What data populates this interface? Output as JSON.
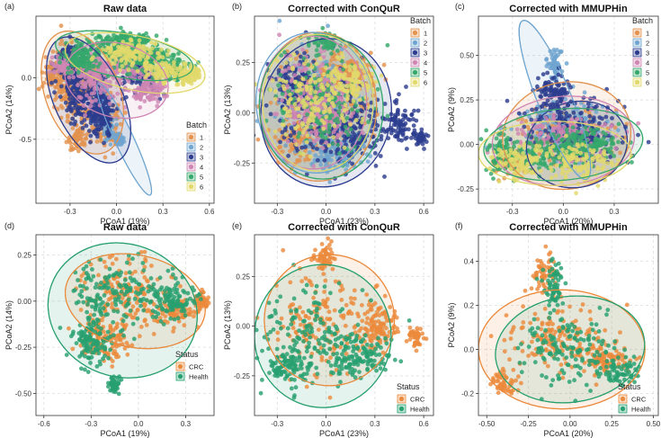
{
  "colors": {
    "batch": [
      "#E3934E",
      "#6FA5CF",
      "#2C3D8F",
      "#CF86B3",
      "#36A86B",
      "#E2D96B"
    ],
    "status": [
      "#EB8A3C",
      "#27A070"
    ],
    "grid": "#E4E4E4",
    "axis": "#333333"
  },
  "chart_data": [
    {
      "type": "scatter",
      "panel_label": "(a)",
      "title": "Raw data",
      "xlabel": "PCoA1 (19%)",
      "ylabel": "PCoA2 (14%)",
      "xlim": [
        -0.52,
        0.63
      ],
      "ylim": [
        -1.02,
        0.5
      ],
      "xticks": [
        -0.3,
        0.0,
        0.3,
        0.6
      ],
      "xtick_labels": [
        "-0.3",
        "0.0",
        "0.3",
        "0.6"
      ],
      "yticks": [
        -0.5,
        0.0
      ],
      "ytick_labels": [
        "-0.5",
        "0.0"
      ],
      "grid": true,
      "legend_title": "Batch",
      "legend_position": "bottom-right",
      "legend": [
        "1",
        "2",
        "3",
        "4",
        "5",
        "6"
      ],
      "series": [
        {
          "name": "1",
          "values": [
            [
              -0.33,
              0.0,
              0.1,
              0.28
            ],
            [
              -0.2,
              -0.12,
              0.13,
              0.25
            ],
            [
              -0.07,
              -0.35,
              0.08,
              0.2
            ],
            [
              -0.25,
              -0.48,
              0.06,
              0.1
            ],
            [
              -0.42,
              0.02,
              0.05,
              0.12
            ]
          ],
          "ellipses": [
            [
              -0.22,
              -0.12,
              0.24,
              0.52,
              20
            ]
          ]
        },
        {
          "name": "2",
          "values": [
            [
              -0.05,
              -0.42,
              0.04,
              0.1
            ],
            [
              0.02,
              -0.5,
              0.03,
              0.05
            ],
            [
              -0.1,
              -0.2,
              0.06,
              0.15
            ]
          ],
          "ellipses": [
            [
              0.05,
              -0.5,
              0.06,
              0.5,
              25
            ]
          ]
        },
        {
          "name": "3",
          "values": [
            [
              -0.27,
              -0.05,
              0.1,
              0.28
            ],
            [
              -0.15,
              -0.2,
              0.1,
              0.25
            ],
            [
              -0.32,
              0.12,
              0.08,
              0.1
            ],
            [
              -0.08,
              -0.32,
              0.07,
              0.18
            ],
            [
              0.15,
              0.05,
              0.12,
              0.2
            ]
          ],
          "ellipses": [
            [
              -0.18,
              -0.18,
              0.22,
              0.55,
              25
            ]
          ]
        },
        {
          "name": "4",
          "values": [
            [
              -0.15,
              0.0,
              0.12,
              0.2
            ],
            [
              0.05,
              0.1,
              0.18,
              0.12
            ],
            [
              0.2,
              -0.1,
              0.12,
              0.12
            ],
            [
              -0.35,
              0.1,
              0.06,
              0.1
            ]
          ],
          "ellipses": [
            [
              0.0,
              -0.02,
              0.34,
              0.3,
              -15
            ]
          ]
        },
        {
          "name": "5",
          "values": [
            [
              0.0,
              0.25,
              0.25,
              0.12
            ],
            [
              0.2,
              0.15,
              0.2,
              0.1
            ],
            [
              0.38,
              0.05,
              0.12,
              0.08
            ],
            [
              -0.22,
              0.15,
              0.12,
              0.12
            ],
            [
              0.1,
              0.3,
              0.15,
              0.06
            ]
          ],
          "ellipses": [
            [
              0.05,
              0.18,
              0.45,
              0.18,
              -10
            ]
          ]
        },
        {
          "name": "6",
          "values": [
            [
              0.3,
              0.05,
              0.15,
              0.08
            ],
            [
              0.1,
              0.2,
              0.2,
              0.1
            ],
            [
              0.45,
              0.0,
              0.06,
              0.06
            ],
            [
              0.5,
              0.05,
              0.04,
              0.05
            ]
          ],
          "ellipses": [
            [
              0.12,
              0.12,
              0.46,
              0.22,
              -12
            ]
          ]
        }
      ]
    },
    {
      "type": "scatter",
      "panel_label": "(b)",
      "title": "Corrected with ConQuR",
      "xlabel": "PCoA1 (23%)",
      "ylabel": "PCoA2 (13%)",
      "xlim": [
        -0.44,
        0.66
      ],
      "ylim": [
        -0.45,
        0.48
      ],
      "xticks": [
        -0.3,
        0.0,
        0.3,
        0.6
      ],
      "xtick_labels": [
        "-0.3",
        "0.0",
        "0.3",
        "0.6"
      ],
      "yticks": [
        -0.25,
        0.0,
        0.25
      ],
      "ytick_labels": [
        "-0.25",
        "0.00",
        "0.25"
      ],
      "grid": true,
      "legend_title": "Batch",
      "legend_position": "top-right",
      "legend": [
        "1",
        "2",
        "3",
        "4",
        "5",
        "6"
      ],
      "series": [
        {
          "name": "1",
          "values": [
            [
              -0.05,
              0.02,
              0.3,
              0.25
            ],
            [
              0.1,
              0.2,
              0.2,
              0.1
            ],
            [
              -0.15,
              -0.15,
              0.15,
              0.1
            ]
          ],
          "ellipses": [
            [
              -0.05,
              0.03,
              0.36,
              0.37,
              0
            ]
          ]
        },
        {
          "name": "2",
          "values": [
            [
              -0.08,
              0.05,
              0.28,
              0.25
            ],
            [
              0.05,
              -0.2,
              0.2,
              0.08
            ]
          ],
          "ellipses": [
            [
              -0.07,
              0.05,
              0.36,
              0.35,
              5
            ]
          ]
        },
        {
          "name": "3",
          "values": [
            [
              -0.05,
              0.02,
              0.32,
              0.26
            ],
            [
              0.15,
              -0.1,
              0.2,
              0.15
            ],
            [
              -0.2,
              0.15,
              0.12,
              0.12
            ],
            [
              0.45,
              -0.05,
              0.1,
              0.1
            ],
            [
              0.58,
              -0.12,
              0.04,
              0.04
            ]
          ],
          "ellipses": [
            [
              0.0,
              0.0,
              0.4,
              0.37,
              -10
            ]
          ]
        },
        {
          "name": "4",
          "values": [
            [
              -0.1,
              0.1,
              0.22,
              0.2
            ],
            [
              0.0,
              0.0,
              0.2,
              0.15
            ]
          ],
          "ellipses": [
            [
              -0.08,
              0.05,
              0.33,
              0.33,
              0
            ]
          ]
        },
        {
          "name": "5",
          "values": [
            [
              -0.02,
              0.05,
              0.3,
              0.25
            ],
            [
              0.0,
              0.35,
              0.1,
              0.05
            ]
          ],
          "ellipses": [
            [
              -0.03,
              0.03,
              0.38,
              0.36,
              5
            ]
          ]
        },
        {
          "name": "6",
          "values": [
            [
              -0.1,
              0.05,
              0.25,
              0.22
            ],
            [
              0.15,
              0.15,
              0.15,
              0.1
            ]
          ],
          "ellipses": [
            [
              -0.05,
              0.05,
              0.34,
              0.34,
              0
            ]
          ]
        }
      ]
    },
    {
      "type": "scatter",
      "panel_label": "(c)",
      "title": "Corrected with MMUPHin",
      "xlabel": "PCoA1 (20%)",
      "ylabel": "PCoA2 (9%)",
      "xlim": [
        -0.5,
        0.56
      ],
      "ylim": [
        -0.33,
        0.72
      ],
      "xticks": [
        -0.3,
        0.0,
        0.3
      ],
      "xtick_labels": [
        "-0.3",
        "0.0",
        "0.3"
      ],
      "yticks": [
        -0.25,
        0.0,
        0.25,
        0.5
      ],
      "ytick_labels": [
        "-0.25",
        "0.00",
        "0.25",
        "0.50"
      ],
      "grid": true,
      "legend_title": "Batch",
      "legend_position": "top-right",
      "legend": [
        "1",
        "2",
        "3",
        "4",
        "5",
        "6"
      ],
      "series": [
        {
          "name": "1",
          "values": [
            [
              0.0,
              0.05,
              0.3,
              0.15
            ],
            [
              -0.3,
              -0.1,
              0.1,
              0.08
            ]
          ],
          "ellipses": [
            [
              0.02,
              0.05,
              0.38,
              0.3,
              10
            ]
          ]
        },
        {
          "name": "2",
          "values": [
            [
              0.0,
              0.1,
              0.3,
              0.15
            ],
            [
              -0.05,
              0.45,
              0.05,
              0.1
            ]
          ],
          "ellipses": [
            [
              -0.05,
              0.25,
              0.1,
              0.48,
              22
            ]
          ]
        },
        {
          "name": "3",
          "values": [
            [
              0.05,
              0.1,
              0.28,
              0.17
            ],
            [
              -0.05,
              0.3,
              0.1,
              0.1
            ],
            [
              0.1,
              0.0,
              0.2,
              0.1
            ]
          ],
          "ellipses": [
            [
              0.08,
              0.0,
              0.3,
              0.24,
              15
            ]
          ]
        },
        {
          "name": "4",
          "values": [
            [
              0.0,
              0.05,
              0.28,
              0.14
            ]
          ],
          "ellipses": [
            [
              0.0,
              0.02,
              0.42,
              0.25,
              5
            ]
          ]
        },
        {
          "name": "5",
          "values": [
            [
              -0.35,
              -0.05,
              0.1,
              0.1
            ],
            [
              -0.1,
              -0.05,
              0.25,
              0.1
            ],
            [
              0.15,
              0.0,
              0.2,
              0.1
            ]
          ],
          "ellipses": [
            [
              0.0,
              0.0,
              0.47,
              0.2,
              5
            ]
          ]
        },
        {
          "name": "6",
          "values": [
            [
              -0.25,
              -0.1,
              0.15,
              0.1
            ],
            [
              0.1,
              -0.1,
              0.2,
              0.1
            ]
          ],
          "ellipses": [
            [
              -0.05,
              -0.05,
              0.45,
              0.18,
              0
            ]
          ]
        }
      ]
    },
    {
      "type": "scatter",
      "panel_label": "(d)",
      "title": "Raw data",
      "xlabel": "PCoA1 (19%)",
      "ylabel": "PCoA2 (14%)",
      "xlim": [
        -0.65,
        0.48
      ],
      "ylim": [
        -0.62,
        0.36
      ],
      "xticks": [
        -0.6,
        -0.3,
        0.0,
        0.3
      ],
      "xtick_labels": [
        "-0.6",
        "-0.3",
        "0.0",
        "0.3"
      ],
      "yticks": [
        -0.5,
        -0.25,
        0.0,
        0.25
      ],
      "ytick_labels": [
        "-0.50",
        "-0.25",
        "0.00",
        "0.25"
      ],
      "grid": true,
      "legend_title": "Status",
      "legend_position": "bottom-right",
      "legend": [
        "CRC",
        "Health"
      ],
      "series": [
        {
          "name": "CRC",
          "values": [
            [
              -0.1,
              0.05,
              0.3,
              0.18
            ],
            [
              0.25,
              -0.05,
              0.15,
              0.08
            ],
            [
              -0.2,
              -0.2,
              0.15,
              0.12
            ],
            [
              0.4,
              0.0,
              0.05,
              0.05
            ]
          ],
          "ellipses": [
            [
              -0.02,
              0.0,
              0.45,
              0.25,
              -12
            ]
          ]
        },
        {
          "name": "Health",
          "values": [
            [
              -0.15,
              0.05,
              0.3,
              0.18
            ],
            [
              -0.3,
              -0.2,
              0.12,
              0.15
            ],
            [
              -0.15,
              -0.45,
              0.04,
              0.05
            ],
            [
              0.2,
              0.0,
              0.15,
              0.1
            ]
          ],
          "ellipses": [
            [
              -0.1,
              -0.05,
              0.48,
              0.36,
              -20
            ]
          ]
        }
      ]
    },
    {
      "type": "scatter",
      "panel_label": "(e)",
      "title": "Corrected with ConQuR",
      "xlabel": "PCoA1 (23%)",
      "ylabel": "PCoA2 (13%)",
      "xlim": [
        -0.44,
        0.66
      ],
      "ylim": [
        -0.45,
        0.46
      ],
      "xticks": [
        -0.3,
        0.0,
        0.3,
        0.6
      ],
      "xtick_labels": [
        "-0.3",
        "0.0",
        "0.3",
        "0.6"
      ],
      "yticks": [
        -0.25,
        0.0,
        0.25
      ],
      "ytick_labels": [
        "-0.25",
        "0.00",
        "0.25"
      ],
      "grid": true,
      "legend_title": "Status",
      "legend_position": "bottom-right",
      "legend": [
        "CRC",
        "Health"
      ],
      "series": [
        {
          "name": "CRC",
          "values": [
            [
              -0.05,
              0.0,
              0.3,
              0.25
            ],
            [
              0.0,
              0.35,
              0.06,
              0.08
            ],
            [
              0.3,
              0.0,
              0.15,
              0.12
            ],
            [
              0.55,
              -0.05,
              0.05,
              0.05
            ]
          ],
          "ellipses": [
            [
              0.02,
              0.03,
              0.4,
              0.33,
              0
            ]
          ]
        },
        {
          "name": "Health",
          "values": [
            [
              -0.1,
              -0.05,
              0.3,
              0.25
            ],
            [
              -0.25,
              -0.2,
              0.12,
              0.1
            ],
            [
              0.2,
              -0.15,
              0.2,
              0.1
            ]
          ],
          "ellipses": [
            [
              -0.02,
              -0.05,
              0.42,
              0.36,
              0
            ]
          ]
        }
      ]
    },
    {
      "type": "scatter",
      "panel_label": "(f)",
      "title": "Corrected with MMUPHin",
      "xlabel": "PCoA1 (20%)",
      "ylabel": "PCoA2 (9%)",
      "xlim": [
        -0.55,
        0.53
      ],
      "ylim": [
        -0.3,
        0.52
      ],
      "xticks": [
        -0.5,
        -0.25,
        0.0,
        0.25,
        0.5
      ],
      "xtick_labels": [
        "-0.50",
        "-0.25",
        "0.00",
        "0.25",
        "0.50"
      ],
      "yticks": [
        -0.2,
        0.0,
        0.2,
        0.4
      ],
      "ytick_labels": [
        "-0.2",
        "0.0",
        "0.2",
        "0.4"
      ],
      "grid": true,
      "legend_title": "Status",
      "legend_position": "bottom-right",
      "legend": [
        "CRC",
        "Health"
      ],
      "series": [
        {
          "name": "CRC",
          "values": [
            [
              -0.1,
              0.05,
              0.3,
              0.15
            ],
            [
              -0.15,
              0.35,
              0.06,
              0.08
            ],
            [
              -0.4,
              -0.15,
              0.08,
              0.05
            ],
            [
              0.2,
              -0.05,
              0.15,
              0.08
            ]
          ],
          "ellipses": [
            [
              -0.05,
              0.0,
              0.5,
              0.27,
              0
            ]
          ]
        },
        {
          "name": "Health",
          "values": [
            [
              0.0,
              0.0,
              0.3,
              0.15
            ],
            [
              -0.1,
              0.3,
              0.06,
              0.1
            ],
            [
              0.3,
              -0.1,
              0.12,
              0.06
            ]
          ],
          "ellipses": [
            [
              0.0,
              0.0,
              0.45,
              0.24,
              8
            ]
          ]
        }
      ]
    }
  ]
}
